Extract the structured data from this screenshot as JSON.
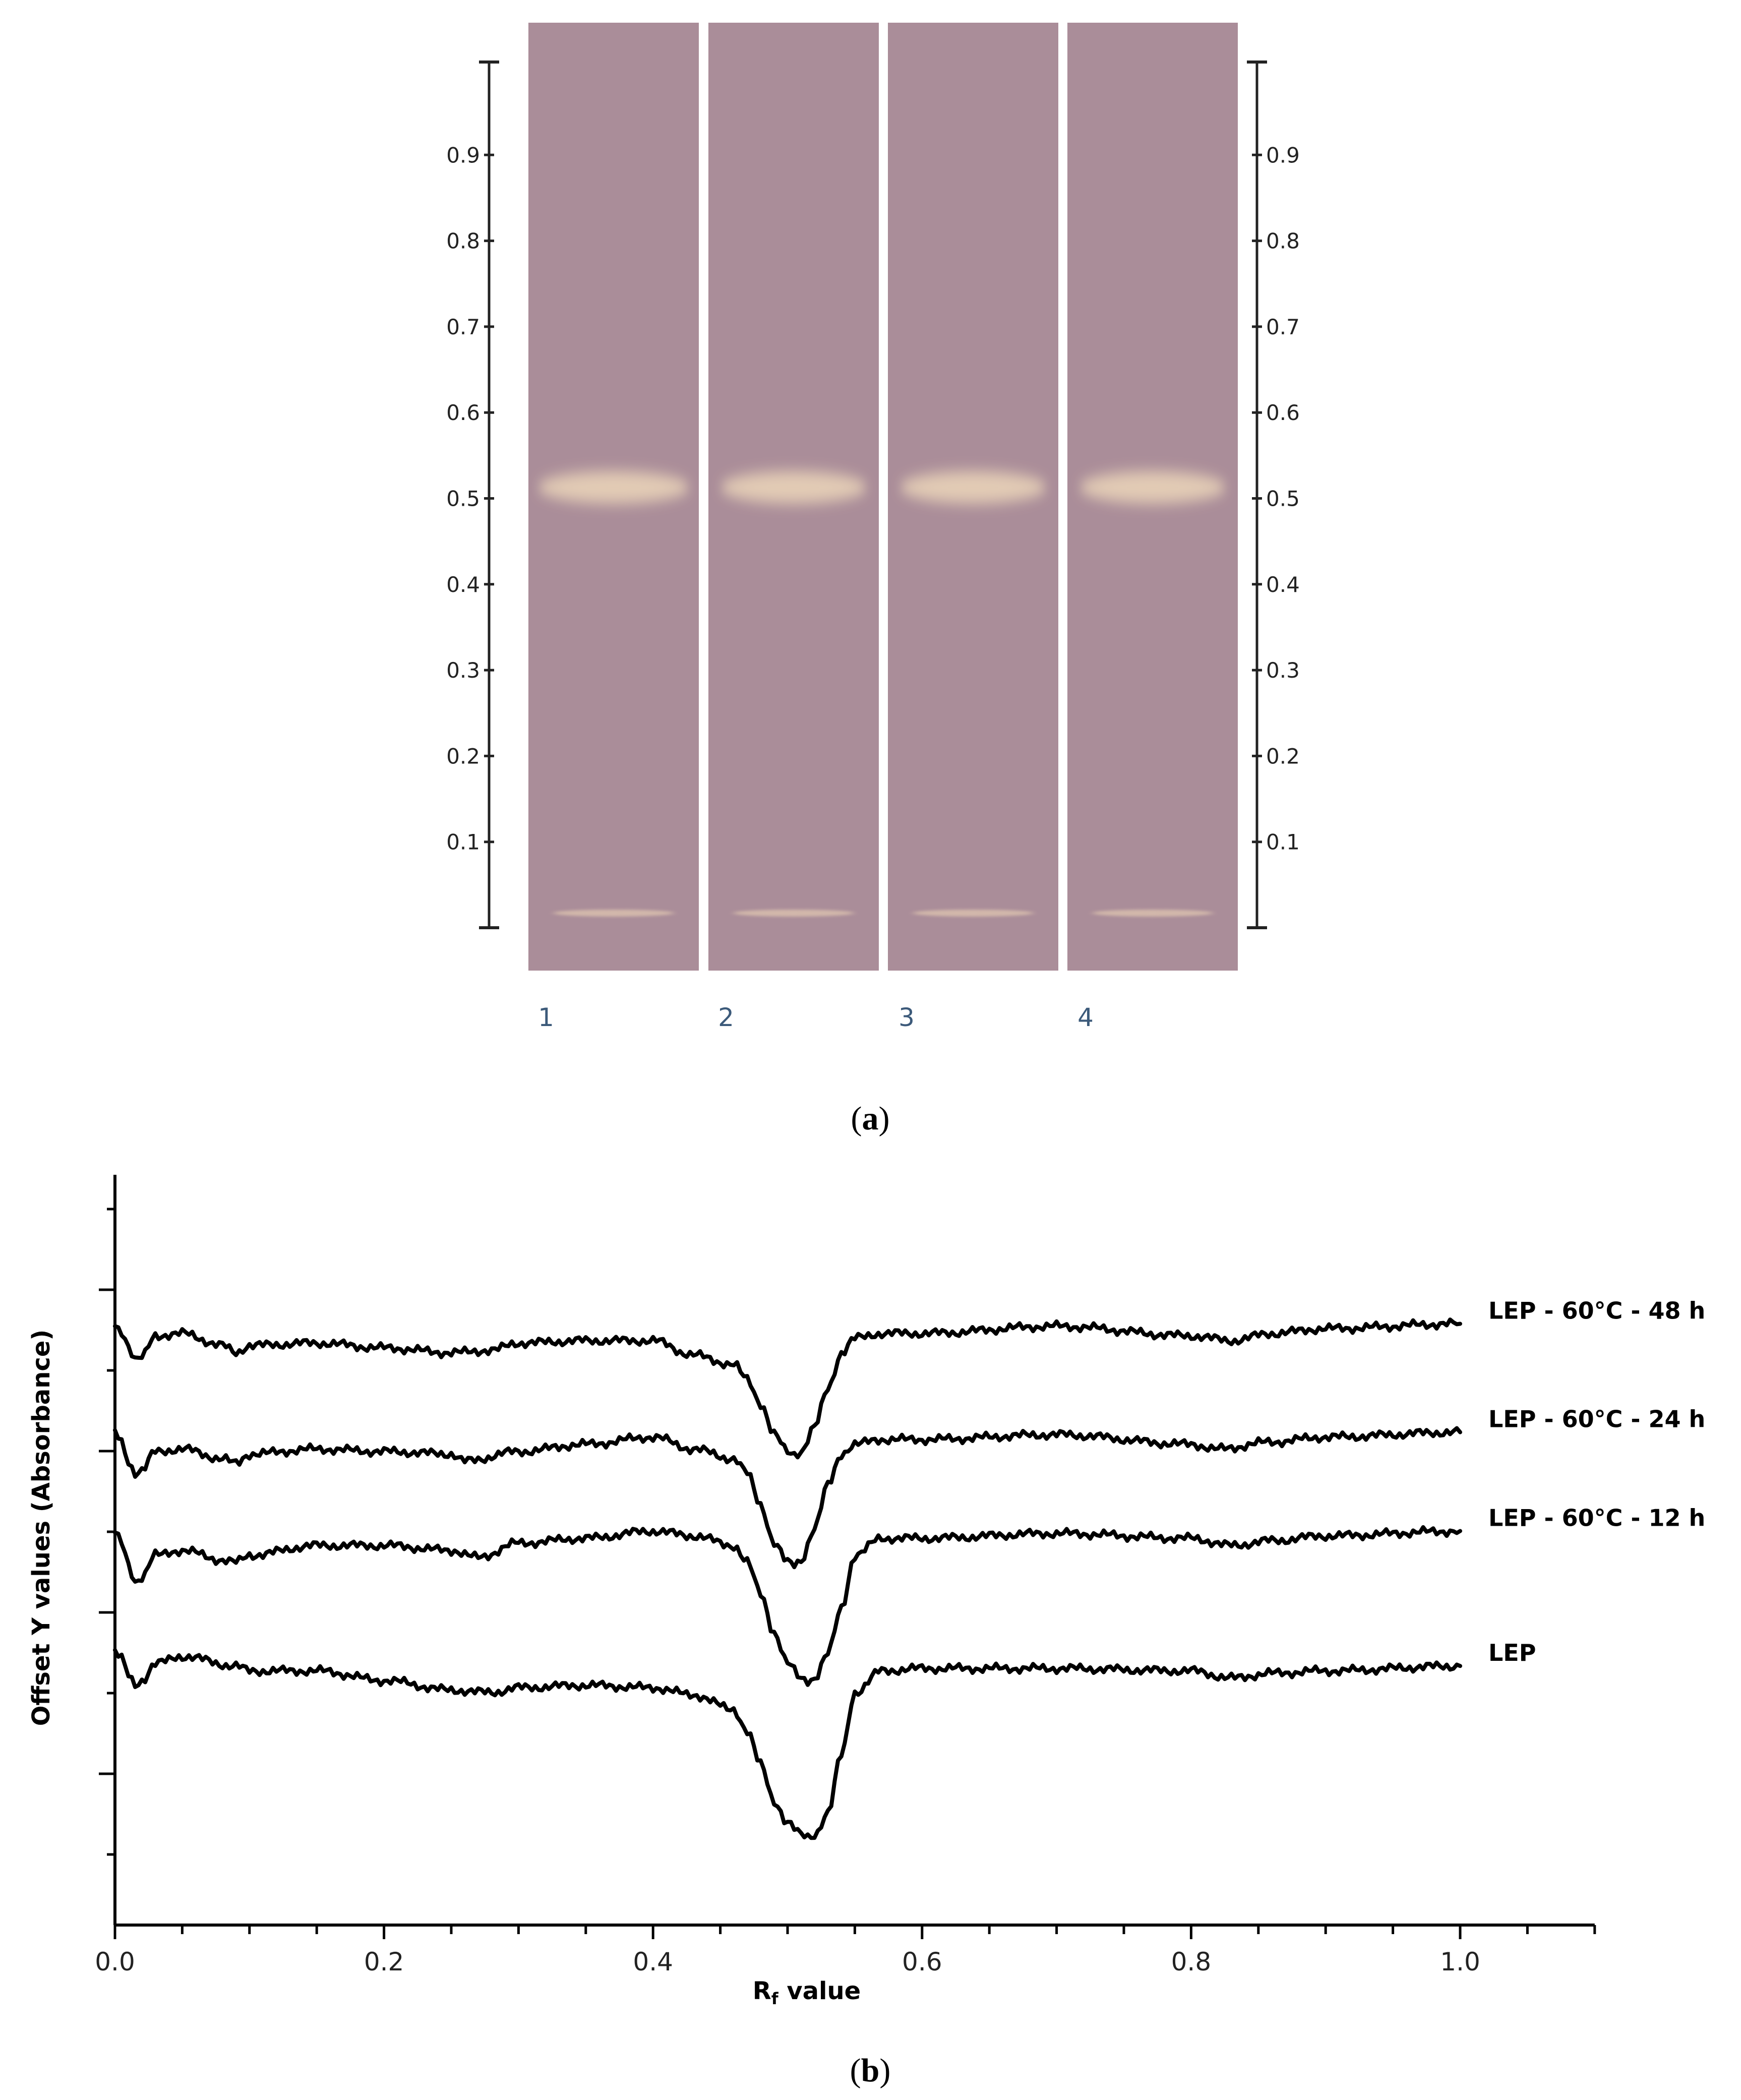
{
  "panel_a": {
    "label_open": "(",
    "label_letter": "a",
    "label_close": ")",
    "plate_color": "#aa8d99",
    "band_color": "#e8d2b8",
    "lanes": [
      "1",
      "2",
      "3",
      "4"
    ],
    "scale_ticks": [
      "0.1",
      "0.2",
      "0.3",
      "0.4",
      "0.5",
      "0.6",
      "0.7",
      "0.8",
      "0.9"
    ],
    "band_rf": 0.5,
    "origin_rf": 0.02
  },
  "panel_b": {
    "label_open": "(",
    "label_letter": "b",
    "label_close": ")"
  },
  "chart_data": {
    "type": "line",
    "xlabel_main": "R",
    "xlabel_sub": "f",
    "xlabel_rest": " value",
    "ylabel": "Offset Y values (Absorbance)",
    "xlim": [
      0.0,
      1.1
    ],
    "x_ticks": [
      "0.0",
      "0.2",
      "0.4",
      "0.6",
      "0.8",
      "1.0"
    ],
    "x_tick_values": [
      0.0,
      0.2,
      0.4,
      0.6,
      0.8,
      1.0
    ],
    "grid": false,
    "series": [
      {
        "name": "LEP - 60°C - 48 h",
        "x": [
          0.0,
          0.005,
          0.01,
          0.015,
          0.02,
          0.03,
          0.05,
          0.08,
          0.09,
          0.1,
          0.15,
          0.2,
          0.25,
          0.28,
          0.3,
          0.35,
          0.4,
          0.43,
          0.46,
          0.47,
          0.48,
          0.49,
          0.5,
          0.505,
          0.51,
          0.52,
          0.53,
          0.54,
          0.55,
          0.57,
          0.6,
          0.7,
          0.8,
          0.83,
          0.86,
          0.9,
          1.0
        ],
        "y": [
          9.2,
          9.0,
          8.4,
          7.8,
          7.9,
          8.8,
          8.9,
          8.4,
          8.1,
          8.4,
          8.5,
          8.3,
          8.1,
          8.2,
          8.5,
          8.6,
          8.6,
          8.0,
          7.6,
          7.0,
          6.0,
          4.7,
          4.0,
          3.9,
          4.0,
          5.0,
          6.6,
          8.1,
          8.7,
          8.9,
          8.9,
          9.2,
          8.8,
          8.6,
          8.9,
          9.1,
          9.3
        ]
      },
      {
        "name": "LEP - 60°C - 24 h",
        "x": [
          0.0,
          0.005,
          0.01,
          0.015,
          0.02,
          0.03,
          0.05,
          0.08,
          0.09,
          0.1,
          0.15,
          0.2,
          0.25,
          0.26,
          0.3,
          0.35,
          0.4,
          0.43,
          0.46,
          0.47,
          0.48,
          0.49,
          0.5,
          0.505,
          0.51,
          0.52,
          0.53,
          0.54,
          0.55,
          0.57,
          0.6,
          0.7,
          0.8,
          0.82,
          0.86,
          0.9,
          1.0
        ],
        "y": [
          4.8,
          4.4,
          3.6,
          3.1,
          3.2,
          4.0,
          4.1,
          3.7,
          3.5,
          3.9,
          4.1,
          4.0,
          3.9,
          3.6,
          4.0,
          4.3,
          4.6,
          4.1,
          3.7,
          3.1,
          1.8,
          0.2,
          -0.6,
          -0.7,
          -0.5,
          0.8,
          2.6,
          3.9,
          4.3,
          4.5,
          4.5,
          4.7,
          4.3,
          4.1,
          4.4,
          4.6,
          4.8
        ]
      },
      {
        "name": "LEP - 60°C - 12 h",
        "x": [
          0.0,
          0.005,
          0.01,
          0.015,
          0.02,
          0.03,
          0.05,
          0.08,
          0.09,
          0.1,
          0.15,
          0.2,
          0.25,
          0.27,
          0.3,
          0.35,
          0.4,
          0.43,
          0.46,
          0.47,
          0.48,
          0.49,
          0.5,
          0.51,
          0.515,
          0.52,
          0.53,
          0.54,
          0.55,
          0.57,
          0.6,
          0.7,
          0.8,
          0.83,
          0.86,
          0.9,
          1.0
        ],
        "y": [
          0.6,
          0.2,
          -0.7,
          -1.4,
          -1.2,
          -0.3,
          -0.1,
          -0.5,
          -0.6,
          -0.3,
          0.1,
          0.1,
          -0.1,
          -0.4,
          0.2,
          0.4,
          0.7,
          0.5,
          0.1,
          -0.6,
          -1.9,
          -3.5,
          -4.8,
          -5.4,
          -5.5,
          -5.4,
          -4.4,
          -2.5,
          -0.3,
          0.4,
          0.4,
          0.6,
          0.4,
          0.1,
          0.3,
          0.5,
          0.7
        ]
      },
      {
        "name": "LEP",
        "x": [
          0.0,
          0.005,
          0.01,
          0.015,
          0.02,
          0.03,
          0.05,
          0.09,
          0.1,
          0.15,
          0.2,
          0.25,
          0.28,
          0.3,
          0.35,
          0.4,
          0.43,
          0.46,
          0.47,
          0.48,
          0.49,
          0.5,
          0.51,
          0.515,
          0.52,
          0.53,
          0.54,
          0.55,
          0.57,
          0.6,
          0.7,
          0.8,
          0.83,
          0.86,
          0.9,
          1.0
        ],
        "y": [
          -4.3,
          -4.6,
          -5.3,
          -5.7,
          -5.5,
          -4.8,
          -4.5,
          -4.9,
          -5.1,
          -5.1,
          -5.5,
          -5.9,
          -6.0,
          -5.8,
          -5.7,
          -5.8,
          -6.1,
          -6.7,
          -7.6,
          -9.0,
          -10.5,
          -11.4,
          -11.9,
          -12.0,
          -11.9,
          -11.0,
          -8.6,
          -6.0,
          -5.1,
          -5.0,
          -5.0,
          -5.1,
          -5.4,
          -5.2,
          -5.1,
          -4.9
        ]
      }
    ]
  }
}
